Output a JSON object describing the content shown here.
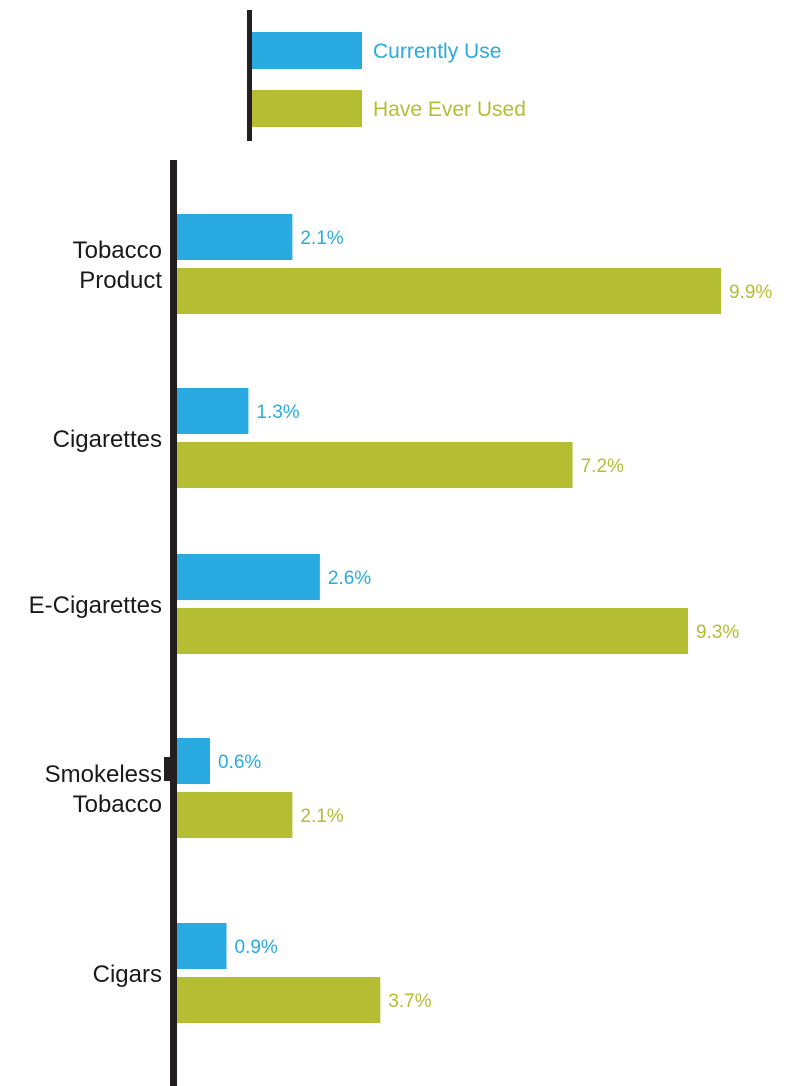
{
  "chart_data": {
    "type": "bar",
    "orientation": "horizontal",
    "title": "",
    "xlabel": "",
    "ylabel": "",
    "categories": [
      [
        "Tobacco",
        "Product"
      ],
      [
        "Cigarettes"
      ],
      [
        "E-Cigarettes"
      ],
      [
        "Smokeless",
        "Tobacco"
      ],
      [
        "Cigars"
      ]
    ],
    "series": [
      {
        "name": "Currently Use",
        "color": "#29abe2",
        "values": [
          2.1,
          1.3,
          2.6,
          0.6,
          0.9
        ],
        "labels": [
          "2.1%",
          "1.3%",
          "2.6%",
          "0.6%",
          "0.9%"
        ]
      },
      {
        "name": "Have Ever Used",
        "color": "#b5bd33",
        "values": [
          9.9,
          7.2,
          9.3,
          2.1,
          3.7
        ],
        "labels": [
          "9.9%",
          "7.2%",
          "9.3%",
          "2.1%",
          "3.7%"
        ]
      }
    ],
    "xlim": [
      0,
      9.9
    ],
    "grid": false,
    "legend_position": "top",
    "axis_color": "#231f20"
  }
}
